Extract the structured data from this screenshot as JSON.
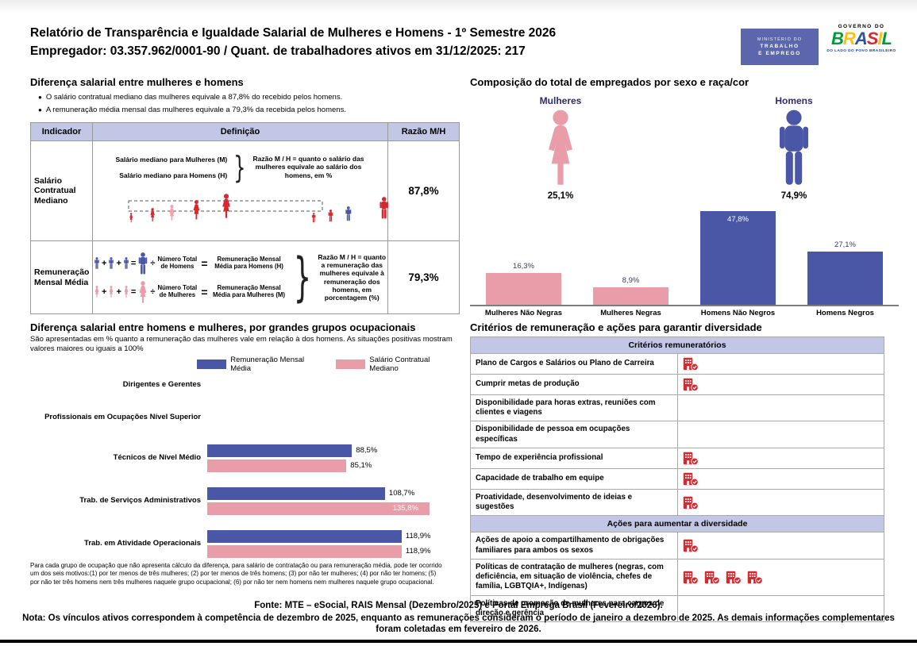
{
  "header": {
    "title_line1": "Relatório de Transparência e Igualdade Salarial de Mulheres e Homens - 1º Semestre 2026",
    "title_line2": "Empregador: 03.357.962/0001-90 / Quant. de trabalhadores ativos em 31/12/2025: 217",
    "mte_logo": {
      "line1": "MINISTÉRIO DO",
      "line2": "TRABALHO",
      "line3": "E EMPREGO"
    },
    "gov_logo": {
      "top": "GOVERNO DO",
      "brand": "BRASIL",
      "brand_colors": [
        "#009C3B",
        "#FDC216",
        "#2B53A0",
        "#D7282F",
        "#FDC216",
        "#009C3B"
      ],
      "bottom": "DO LADO DO POVO BRASILEIRO"
    }
  },
  "colors": {
    "blue": "#4A57A6",
    "pink": "#E89DA9",
    "light_pink": "#F2A0AE",
    "lavender": "#C2C7E6",
    "red": "#D7282F",
    "navy": "#2D2A70"
  },
  "salary_section": {
    "title": "Diferença salarial entre mulheres e homens",
    "bullets": [
      "O salário contratual mediano das mulheres equivale a 87,8% do recebido pelos homens.",
      "A remuneração média mensal das mulheres equivale a 79,3% da recebida pelos homens."
    ],
    "table_headers": [
      "Indicador",
      "Definição",
      "Razão M/H"
    ],
    "row_median": {
      "indicator": "Salário Contratual Mediano",
      "label_women": "Salário mediano para Mulheres (M)",
      "label_men": "Salário mediano para Homens (H)",
      "note": "Razão M / H = quanto o salário das mulheres equivale ao salário dos homens, em %",
      "ratio": "87,8%"
    },
    "row_mean": {
      "indicator": "Remuneração Mensal Média",
      "ops": {
        "plus": "+",
        "eq": "=",
        "div": "÷"
      },
      "men_divisor": "Número Total de Homens",
      "men_result": "Remuneração Mensal Média para Homens (H)",
      "women_divisor": "Número Total de Mulheres",
      "women_result": "Remuneração Mensal Média para Mulheres (M)",
      "note": "Razão M / H = quanto a remuneração das mulheres equivale à remuneração dos homens, em porcentagem (%)",
      "ratio": "79,3%"
    }
  },
  "composition": {
    "title": "Composição do total de empregados por sexo e raça/cor",
    "women_label": "Mulheres",
    "women_pct": "25,1%",
    "men_label": "Homens",
    "men_pct": "74,9%"
  },
  "occupational": {
    "title": "Diferença salarial entre homens e mulheres, por grandes grupos ocupacionais",
    "subtitle": "São apresentadas em % quanto a remuneração das mulheres vale em relação à dos homens. As situações positivas mostram valores maiores ou iguais a 100%",
    "legend": [
      {
        "label": "Remuneração Mensal Média",
        "color": "#4A57A6"
      },
      {
        "label": "Salário Contratual Mediano",
        "color": "#E89DA9"
      }
    ],
    "footnote": "Para cada grupo de ocupação que não apresenta cálculo da diferença, para salário de contratação ou para remuneração média, pode ter ocorrido um dos seis motivos:(1) por ter menos de três mulheres; (2) por ter menos de três homens; (3) por não ter mulheres; (4) por não ter homens; (5) por não ter três homens nem três mulheres naquele grupo ocupacional; (6) por não ter nem homens nem mulheres naquele grupo ocupacional."
  },
  "chart_data": [
    {
      "name": "composition_by_sex_race",
      "type": "bar",
      "title": "Composição do total de empregados por sexo e raça/cor",
      "categories": [
        "Mulheres Não Negras",
        "Mulheres Negras",
        "Homens Não Negros",
        "Homens Negros"
      ],
      "values": [
        16.3,
        8.9,
        47.8,
        27.1
      ],
      "value_labels": [
        "16,3%",
        "8,9%",
        "47,8%",
        "27,1%"
      ],
      "colors": [
        "#E89DA9",
        "#E89DA9",
        "#4A57A6",
        "#4A57A6"
      ],
      "label_inside": [
        false,
        false,
        true,
        false
      ],
      "extra_totals": {
        "Mulheres": 25.1,
        "Homens": 74.9
      },
      "xlabel": "",
      "ylabel": "",
      "ylim": [
        0,
        50
      ],
      "grid": false,
      "legend_position": "none"
    },
    {
      "name": "pay_gap_by_occupation",
      "type": "bar",
      "orientation": "horizontal",
      "title": "Diferença salarial entre homens e mulheres, por grandes grupos ocupacionais",
      "categories": [
        "Dirigentes e Gerentes",
        "Profissionais em Ocupações Nível Superior",
        "Técnicos de Nível Médio",
        "Trab. de Serviços Administrativos",
        "Trab. em Atividade Operacionais"
      ],
      "series": [
        {
          "name": "Remuneração Mensal Média",
          "color": "#4A57A6",
          "values": [
            null,
            null,
            88.5,
            108.7,
            118.9
          ],
          "labels": [
            "",
            "",
            "88,5%",
            "108,7%",
            "118,9%"
          ],
          "inside": [
            false,
            false,
            false,
            false,
            false
          ]
        },
        {
          "name": "Salário Contratual Mediano",
          "color": "#E89DA9",
          "values": [
            null,
            null,
            85.1,
            135.8,
            118.9
          ],
          "labels": [
            "",
            "",
            "85,1%",
            "135,8%",
            "118,9%"
          ],
          "inside": [
            false,
            false,
            false,
            true,
            false
          ]
        }
      ],
      "xlim": [
        0,
        140
      ],
      "grid": false,
      "legend_position": "top"
    }
  ],
  "criteria": {
    "title": "Critérios de remuneração e ações para garantir diversidade",
    "sections": [
      {
        "header": "Critérios remuneratórios",
        "rows": [
          {
            "label": "Plano de Cargos e Salários ou Plano de Carreira",
            "icons": 1
          },
          {
            "label": "Cumprir metas de produção",
            "icons": 1
          },
          {
            "label": "Disponibilidade para horas extras, reuniões com clientes e viagens",
            "icons": 0
          },
          {
            "label": "Disponibilidade de pessoa em ocupações específicas",
            "icons": 0
          },
          {
            "label": "Tempo de experiência profissional",
            "icons": 1
          },
          {
            "label": "Capacidade de trabalho em equipe",
            "icons": 1
          },
          {
            "label": "Proatividade, desenvolvimento de ideias e sugestões",
            "icons": 1
          }
        ]
      },
      {
        "header": "Ações para aumentar a diversidade",
        "rows": [
          {
            "label": "Ações de apoio a compartilhamento de obrigações familiares para ambos os sexos",
            "icons": 1
          },
          {
            "label": "Políticas de contratação de mulheres (negras, com deficiência, em situação de violência, chefes de família, LGBTQIA+, Indígenas)",
            "icons": 4
          },
          {
            "label": "Políticas de promoção de mulheres para cargos de direção e gerência",
            "icons": 0
          }
        ]
      }
    ]
  },
  "footer": {
    "fonte": "Fonte: MTE – eSocial, RAIS Mensal (Dezembro/2025) e Portal Emprega Brasil (Fevereiro/2026).",
    "nota": "Nota: Os vínculos ativos correspondem à competência de dezembro de 2025, enquanto as remunerações consideram o período de janeiro a dezembro de 2025. As demais informações complementares foram coletadas em fevereiro de 2026."
  }
}
